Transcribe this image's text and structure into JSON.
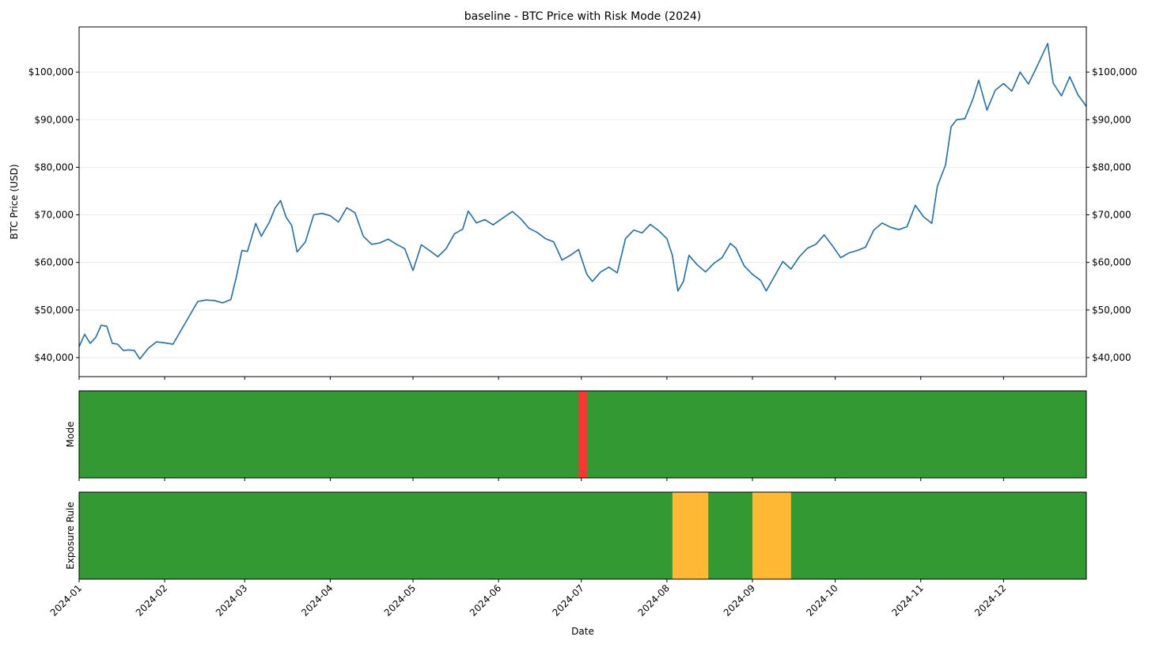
{
  "chart_data": [
    {
      "type": "line",
      "title": "baseline - BTC Price with Risk Mode (2024)",
      "ylabel": "BTC Price (USD)",
      "y_ticks": [
        "$40,000",
        "$50,000",
        "$60,000",
        "$70,000",
        "$80,000",
        "$90,000",
        "$100,000"
      ],
      "y_tick_values": [
        40000,
        50000,
        60000,
        70000,
        80000,
        90000,
        100000
      ],
      "ylim": [
        36000,
        109500
      ],
      "xlim": [
        "2024-01-01",
        "2024-12-31"
      ],
      "grid": "horizontal",
      "right_axis_ticks": true,
      "color": "#1f6fab",
      "series": [
        {
          "x": [
            "2024-01-01",
            "2024-01-03",
            "2024-01-05",
            "2024-01-07",
            "2024-01-09",
            "2024-01-11",
            "2024-01-13",
            "2024-01-15",
            "2024-01-17",
            "2024-01-19",
            "2024-01-21",
            "2024-01-23",
            "2024-01-26",
            "2024-01-29",
            "2024-02-01",
            "2024-02-04",
            "2024-02-07",
            "2024-02-10",
            "2024-02-13",
            "2024-02-16",
            "2024-02-19",
            "2024-02-22",
            "2024-02-25",
            "2024-02-27",
            "2024-02-29",
            "2024-03-02",
            "2024-03-05",
            "2024-03-07",
            "2024-03-10",
            "2024-03-12",
            "2024-03-14",
            "2024-03-16",
            "2024-03-18",
            "2024-03-20",
            "2024-03-23",
            "2024-03-26",
            "2024-03-29",
            "2024-04-01",
            "2024-04-04",
            "2024-04-07",
            "2024-04-10",
            "2024-04-13",
            "2024-04-16",
            "2024-04-19",
            "2024-04-22",
            "2024-04-25",
            "2024-04-28",
            "2024-05-01",
            "2024-05-04",
            "2024-05-07",
            "2024-05-10",
            "2024-05-13",
            "2024-05-16",
            "2024-05-19",
            "2024-05-21",
            "2024-05-24",
            "2024-05-27",
            "2024-05-30",
            "2024-06-03",
            "2024-06-06",
            "2024-06-09",
            "2024-06-12",
            "2024-06-15",
            "2024-06-18",
            "2024-06-21",
            "2024-06-24",
            "2024-06-27",
            "2024-06-30",
            "2024-07-03",
            "2024-07-05",
            "2024-07-08",
            "2024-07-11",
            "2024-07-14",
            "2024-07-17",
            "2024-07-20",
            "2024-07-23",
            "2024-07-26",
            "2024-07-29",
            "2024-08-01",
            "2024-08-03",
            "2024-08-05",
            "2024-08-07",
            "2024-08-09",
            "2024-08-12",
            "2024-08-15",
            "2024-08-18",
            "2024-08-21",
            "2024-08-24",
            "2024-08-26",
            "2024-08-29",
            "2024-09-01",
            "2024-09-04",
            "2024-09-06",
            "2024-09-09",
            "2024-09-12",
            "2024-09-15",
            "2024-09-18",
            "2024-09-21",
            "2024-09-24",
            "2024-09-27",
            "2024-09-30",
            "2024-10-03",
            "2024-10-06",
            "2024-10-09",
            "2024-10-12",
            "2024-10-15",
            "2024-10-18",
            "2024-10-21",
            "2024-10-24",
            "2024-10-27",
            "2024-10-30",
            "2024-11-02",
            "2024-11-05",
            "2024-11-07",
            "2024-11-10",
            "2024-11-12",
            "2024-11-14",
            "2024-11-17",
            "2024-11-20",
            "2024-11-22",
            "2024-11-25",
            "2024-11-28",
            "2024-12-01",
            "2024-12-04",
            "2024-12-07",
            "2024-12-10",
            "2024-12-13",
            "2024-12-16",
            "2024-12-17",
            "2024-12-19",
            "2024-12-22",
            "2024-12-25",
            "2024-12-28",
            "2024-12-31"
          ],
          "y": [
            42300,
            44900,
            43000,
            44200,
            46800,
            46600,
            43000,
            42800,
            41500,
            41600,
            41500,
            39700,
            41900,
            43300,
            43100,
            42800,
            45800,
            48800,
            51800,
            52100,
            52000,
            51500,
            52200,
            57000,
            62500,
            62300,
            68200,
            65500,
            68500,
            71400,
            73000,
            69500,
            67800,
            62200,
            64300,
            70000,
            70300,
            69800,
            68500,
            71500,
            70400,
            65500,
            63800,
            64100,
            64900,
            63800,
            62900,
            58300,
            63700,
            62500,
            61200,
            62900,
            66000,
            67000,
            70800,
            68300,
            69000,
            67900,
            69500,
            70700,
            69200,
            67200,
            66300,
            65000,
            64300,
            60500,
            61500,
            62700,
            57500,
            56000,
            58000,
            59000,
            57800,
            65000,
            66800,
            66200,
            68000,
            66700,
            65000,
            61500,
            54000,
            56000,
            61500,
            59500,
            58000,
            59800,
            61000,
            64000,
            63000,
            59300,
            57500,
            56200,
            54000,
            57100,
            60200,
            58600,
            61200,
            63000,
            63800,
            65800,
            63500,
            61000,
            62000,
            62500,
            63200,
            66800,
            68300,
            67400,
            66900,
            67500,
            72000,
            69600,
            68200,
            76000,
            80500,
            88500,
            90000,
            90200,
            94500,
            98300,
            92000,
            96200,
            97600,
            96000,
            100000,
            97500,
            101000,
            104800,
            106000,
            97700,
            95000,
            99000,
            95200,
            92800
          ]
        }
      ]
    },
    {
      "type": "heatmap",
      "ylabel": "Mode",
      "colors": {
        "normal": "#339933",
        "alert": "#ff3333"
      },
      "default_state": "normal",
      "bands": [
        {
          "state": "alert",
          "start": "2024-06-30",
          "end": "2024-07-03"
        }
      ]
    },
    {
      "type": "heatmap",
      "ylabel": "Exposure Rule",
      "xlabel": "Date",
      "colors": {
        "normal": "#339933",
        "reduced": "#ffb833"
      },
      "default_state": "normal",
      "bands": [
        {
          "state": "reduced",
          "start": "2024-08-03",
          "end": "2024-08-16"
        },
        {
          "state": "reduced",
          "start": "2024-09-01",
          "end": "2024-09-15"
        }
      ],
      "x_ticks": [
        "2024-01",
        "2024-02",
        "2024-03",
        "2024-04",
        "2024-05",
        "2024-06",
        "2024-07",
        "2024-08",
        "2024-09",
        "2024-10",
        "2024-11",
        "2024-12"
      ],
      "x_tick_dates": [
        "2024-01-01",
        "2024-02-01",
        "2024-03-01",
        "2024-04-01",
        "2024-05-01",
        "2024-06-01",
        "2024-07-01",
        "2024-08-01",
        "2024-09-01",
        "2024-10-01",
        "2024-11-01",
        "2024-12-01"
      ]
    }
  ]
}
